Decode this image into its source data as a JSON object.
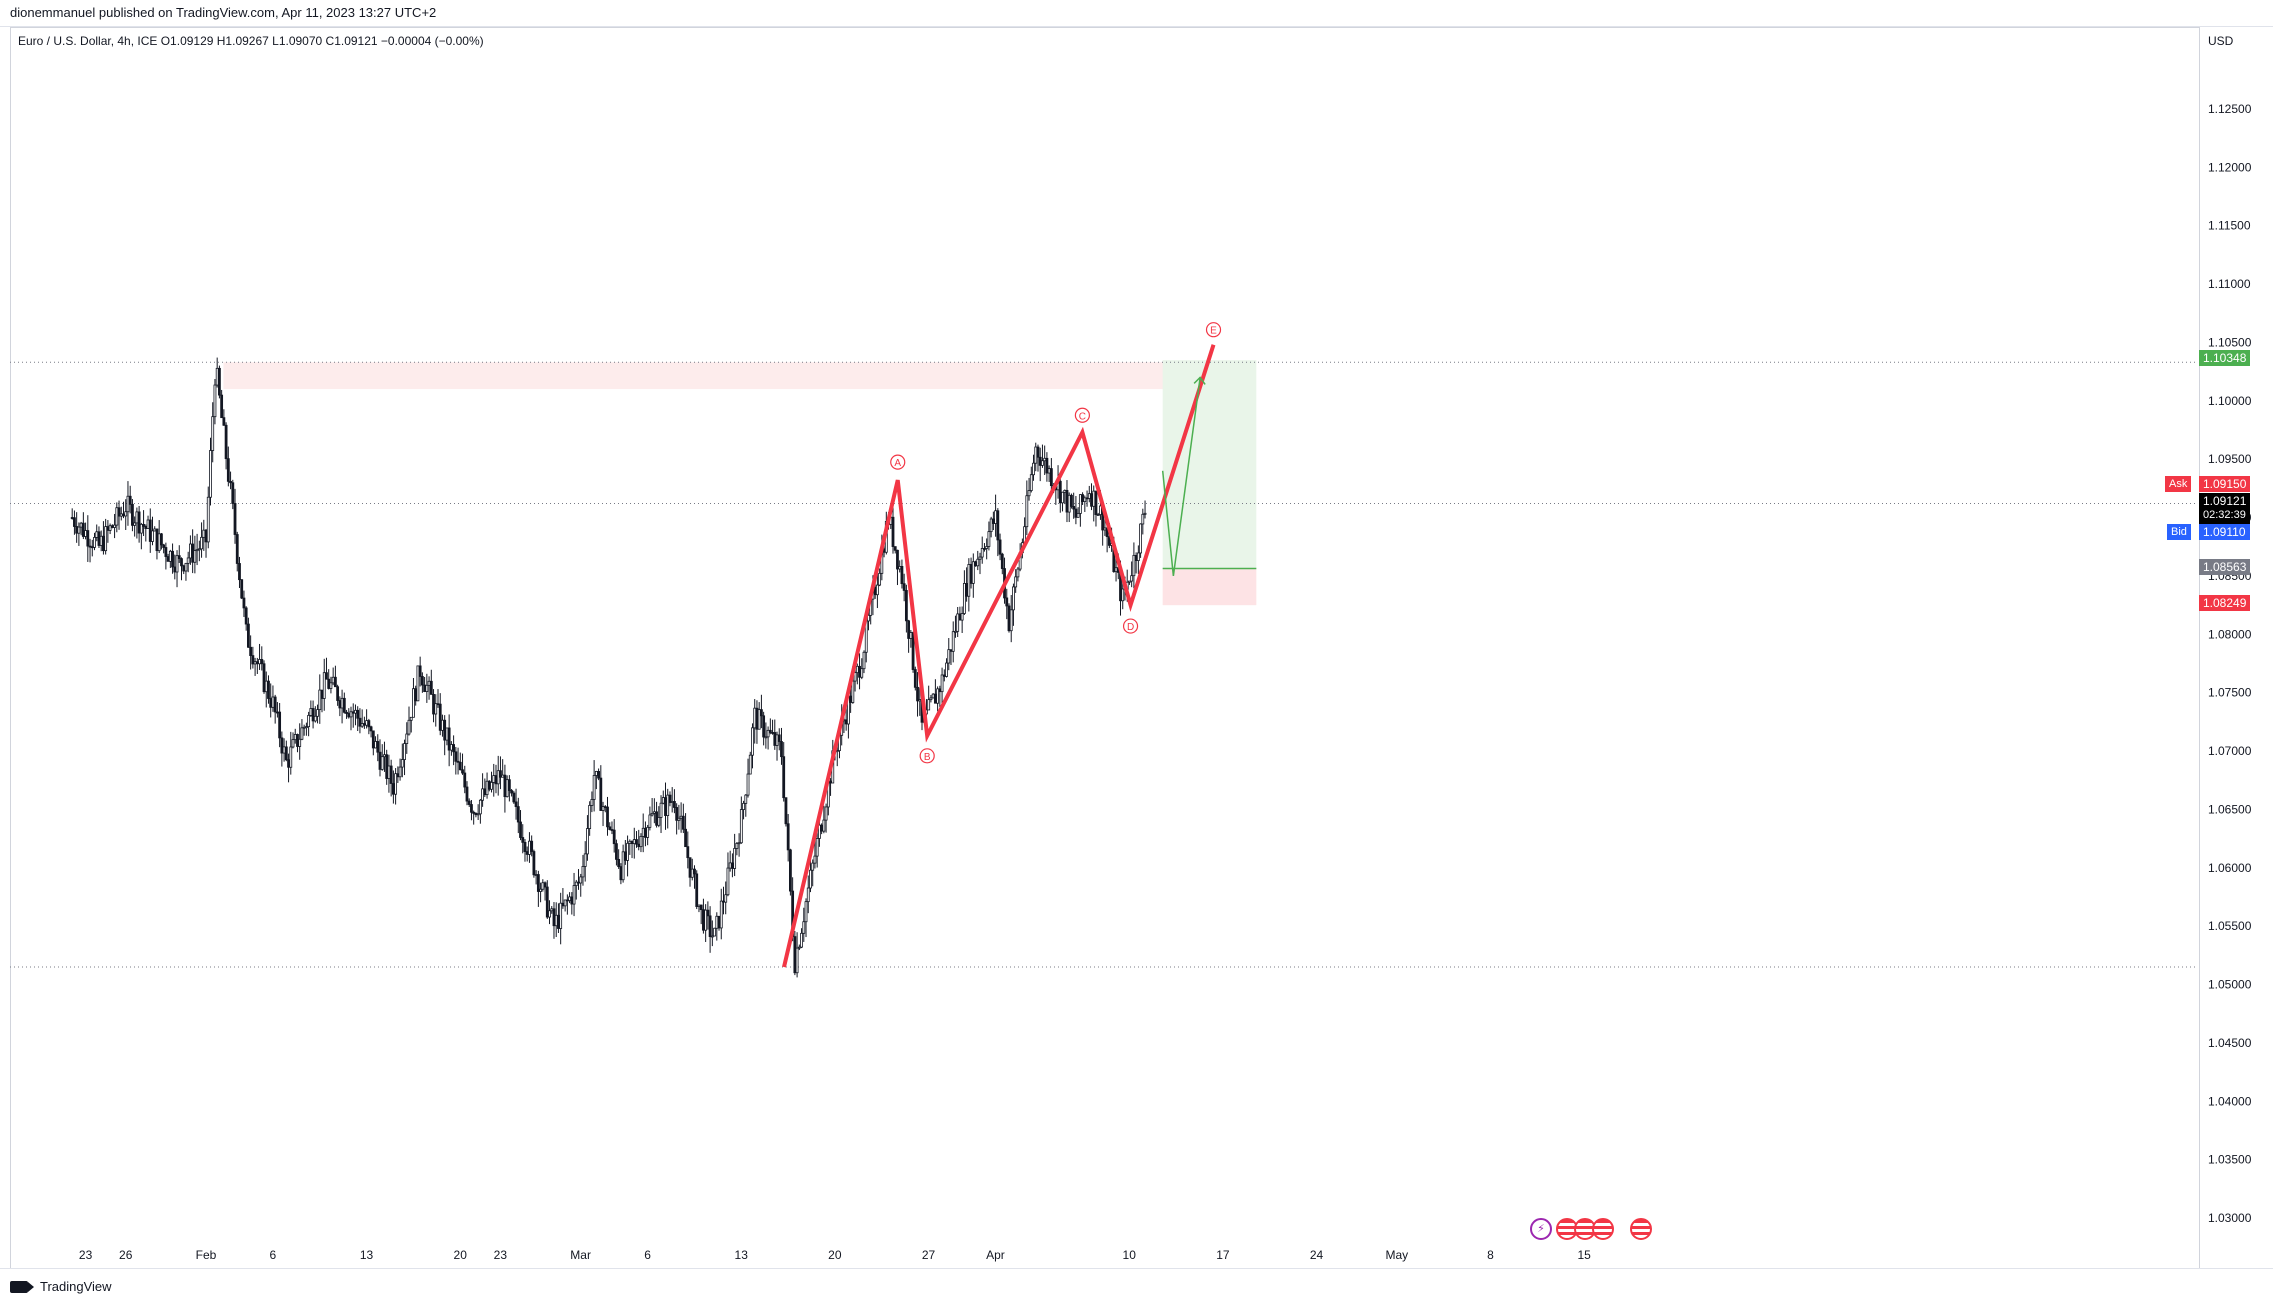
{
  "header": {
    "published_text": "dionemmanuel published on TradingView.com, Apr 11, 2023 13:27 UTC+2"
  },
  "legend": {
    "text": "Euro / U.S. Dollar, 4h, ICE  O1.09129  H1.09267  L1.09070  C1.09121  −0.00004 (−0.00%)"
  },
  "axis": {
    "currency": "USD"
  },
  "price_tags": {
    "ask_label": "Ask",
    "ask_value": "1.09150",
    "current_value": "1.09121",
    "countdown": "02:32:39",
    "bid_label": "Bid",
    "bid_value": "1.09110",
    "target_value": "1.10348",
    "entry_value": "1.08563",
    "stop_value": "1.08249"
  },
  "footer": {
    "brand": "TradingView"
  },
  "colors": {
    "up_candle": "#131722",
    "wave_line": "#f23645",
    "target_zone": "#e9f5e9",
    "stop_zone": "#fde3e5",
    "resistance_zone": "#fdecec",
    "ask": "#f23645",
    "bid": "#2962ff",
    "target": "#4caf50",
    "entry": "#787b86",
    "stop": "#f23645"
  },
  "chart_data": {
    "type": "candlestick",
    "symbol": "EURUSD",
    "timeframe": "4h",
    "ylim": [
      1.027,
      1.131
    ],
    "y_ticks": [
      "1.12500",
      "1.12000",
      "1.11500",
      "1.11000",
      "1.10500",
      "1.10000",
      "1.09500",
      "1.09000",
      "1.08500",
      "1.08000",
      "1.07500",
      "1.07000",
      "1.06500",
      "1.06000",
      "1.05500",
      "1.05000",
      "1.04500",
      "1.04000",
      "1.03500",
      "1.03000"
    ],
    "x_ticks": [
      {
        "label": "23",
        "day": -9
      },
      {
        "label": "26",
        "day": -6
      },
      {
        "label": "Feb",
        "day": 0
      },
      {
        "label": "6",
        "day": 5
      },
      {
        "label": "13",
        "day": 12
      },
      {
        "label": "20",
        "day": 19
      },
      {
        "label": "23",
        "day": 22
      },
      {
        "label": "Mar",
        "day": 28
      },
      {
        "label": "6",
        "day": 33
      },
      {
        "label": "13",
        "day": 40
      },
      {
        "label": "20",
        "day": 47
      },
      {
        "label": "27",
        "day": 54
      },
      {
        "label": "Apr",
        "day": 59
      },
      {
        "label": "10",
        "day": 69
      },
      {
        "label": "17",
        "day": 76
      },
      {
        "label": "24",
        "day": 83
      },
      {
        "label": "May",
        "day": 89
      },
      {
        "label": "8",
        "day": 96
      },
      {
        "label": "15",
        "day": 103
      }
    ],
    "price_path": [
      {
        "day": -10,
        "price": 1.09
      },
      {
        "day": -8,
        "price": 1.0875
      },
      {
        "day": -6,
        "price": 1.091
      },
      {
        "day": -4,
        "price": 1.0885
      },
      {
        "day": -2,
        "price": 1.086
      },
      {
        "day": 0,
        "price": 1.088
      },
      {
        "day": 0.7,
        "price": 1.103
      },
      {
        "day": 2,
        "price": 1.0905
      },
      {
        "day": 3,
        "price": 1.08
      },
      {
        "day": 5,
        "price": 1.074
      },
      {
        "day": 6,
        "price": 1.069
      },
      {
        "day": 9,
        "price": 1.076
      },
      {
        "day": 12,
        "price": 1.072
      },
      {
        "day": 14,
        "price": 1.067
      },
      {
        "day": 16,
        "price": 1.077
      },
      {
        "day": 18,
        "price": 1.071
      },
      {
        "day": 20,
        "price": 1.065
      },
      {
        "day": 22,
        "price": 1.068
      },
      {
        "day": 24,
        "price": 1.062
      },
      {
        "day": 26,
        "price": 1.055
      },
      {
        "day": 28,
        "price": 1.059
      },
      {
        "day": 29,
        "price": 1.068
      },
      {
        "day": 31,
        "price": 1.06
      },
      {
        "day": 33,
        "price": 1.064
      },
      {
        "day": 35,
        "price": 1.066
      },
      {
        "day": 37,
        "price": 1.056
      },
      {
        "day": 38,
        "price": 1.054
      },
      {
        "day": 40,
        "price": 1.064
      },
      {
        "day": 41,
        "price": 1.073
      },
      {
        "day": 43,
        "price": 1.07
      },
      {
        "day": 44,
        "price": 1.052
      },
      {
        "day": 45,
        "price": 1.058
      },
      {
        "day": 47,
        "price": 1.07
      },
      {
        "day": 49,
        "price": 1.078
      },
      {
        "day": 51,
        "price": 1.09
      },
      {
        "day": 52,
        "price": 1.085
      },
      {
        "day": 53.5,
        "price": 1.072
      },
      {
        "day": 55,
        "price": 1.076
      },
      {
        "day": 57,
        "price": 1.085
      },
      {
        "day": 59,
        "price": 1.09
      },
      {
        "day": 60,
        "price": 1.081
      },
      {
        "day": 61,
        "price": 1.088
      },
      {
        "day": 62,
        "price": 1.096
      },
      {
        "day": 63.5,
        "price": 1.093
      },
      {
        "day": 65,
        "price": 1.09
      },
      {
        "day": 66,
        "price": 1.0925
      },
      {
        "day": 67,
        "price": 1.09
      },
      {
        "day": 68.5,
        "price": 1.083
      },
      {
        "day": 69.5,
        "price": 1.087
      },
      {
        "day": 70.3,
        "price": 1.0912
      }
    ],
    "waves": [
      {
        "label": "A",
        "day": 51.7,
        "price": 1.0932
      },
      {
        "label": "B",
        "day": 53.9,
        "price": 1.0713
      },
      {
        "label": "C",
        "day": 65.5,
        "price": 1.0973
      },
      {
        "label": "D",
        "day": 69.1,
        "price": 1.0825
      },
      {
        "label": "E",
        "day": 75.3,
        "price": 1.1048
      }
    ],
    "wave_start": {
      "day": 43.2,
      "price": 1.0515
    },
    "levels": {
      "resistance_dotted": 1.1033,
      "current_dotted": 1.0912,
      "support_dotted": 1.0515
    },
    "resistance_zone": {
      "from_day": 1.3,
      "to_day": 76.8,
      "top": 1.1033,
      "bottom": 1.101
    },
    "position": {
      "from_day": 71.5,
      "to_day": 78.5,
      "target": 1.10348,
      "entry": 1.08563,
      "stop": 1.08249
    },
    "projection": [
      {
        "day": 71.5,
        "price": 1.094
      },
      {
        "day": 72.3,
        "price": 1.085
      },
      {
        "day": 74.3,
        "price": 1.102
      }
    ]
  }
}
